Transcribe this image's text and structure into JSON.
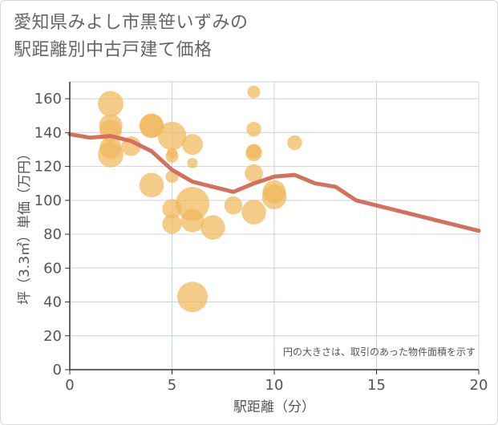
{
  "title": {
    "line1": "愛知県みよし市黒笹いずみの",
    "line2": "駅距離別中古戸建て価格"
  },
  "colors": {
    "bubble": "#f0b85a",
    "line": "#d4705e",
    "grid": "#c8d4e0",
    "plot_bg": "#ffffff"
  },
  "chart_data": {
    "type": "scatter",
    "xlabel": "駅距離（分）",
    "ylabel": "坪（3.3㎡）単価（万円）",
    "xlim": [
      0,
      20
    ],
    "ylim": [
      0,
      170
    ],
    "xticks": [
      0,
      5,
      10,
      15,
      20
    ],
    "yticks": [
      0,
      20,
      40,
      60,
      80,
      100,
      120,
      140,
      160
    ],
    "note": "円の大きさは、取引のあった物件面積を示す",
    "bubbles": [
      {
        "x": 2,
        "y": 157,
        "size": 12
      },
      {
        "x": 2,
        "y": 144,
        "size": 10
      },
      {
        "x": 2,
        "y": 141,
        "size": 9
      },
      {
        "x": 2,
        "y": 131,
        "size": 9
      },
      {
        "x": 2,
        "y": 127,
        "size": 12
      },
      {
        "x": 3,
        "y": 132,
        "size": 7
      },
      {
        "x": 4,
        "y": 144,
        "size": 11
      },
      {
        "x": 4,
        "y": 144,
        "size": 10
      },
      {
        "x": 4,
        "y": 109,
        "size": 11
      },
      {
        "x": 5,
        "y": 138,
        "size": 15
      },
      {
        "x": 5,
        "y": 128,
        "size": 2
      },
      {
        "x": 5,
        "y": 126,
        "size": 3
      },
      {
        "x": 5,
        "y": 114,
        "size": 3
      },
      {
        "x": 5,
        "y": 95,
        "size": 7
      },
      {
        "x": 5,
        "y": 86,
        "size": 7
      },
      {
        "x": 6,
        "y": 133,
        "size": 8
      },
      {
        "x": 6,
        "y": 122,
        "size": 2
      },
      {
        "x": 6,
        "y": 98,
        "size": 21
      },
      {
        "x": 6,
        "y": 88,
        "size": 10
      },
      {
        "x": 6,
        "y": 43,
        "size": 17
      },
      {
        "x": 7,
        "y": 84,
        "size": 11
      },
      {
        "x": 8,
        "y": 97,
        "size": 6
      },
      {
        "x": 9,
        "y": 164,
        "size": 3
      },
      {
        "x": 9,
        "y": 142,
        "size": 4
      },
      {
        "x": 9,
        "y": 129,
        "size": 4
      },
      {
        "x": 9,
        "y": 128,
        "size": 5
      },
      {
        "x": 9,
        "y": 116,
        "size": 6
      },
      {
        "x": 9,
        "y": 93,
        "size": 11
      },
      {
        "x": 10,
        "y": 105,
        "size": 10
      },
      {
        "x": 10,
        "y": 102,
        "size": 11
      },
      {
        "x": 11,
        "y": 134,
        "size": 4
      }
    ],
    "trend": {
      "x": [
        0,
        1,
        2,
        3,
        4,
        5,
        6,
        7,
        8,
        9,
        10,
        11,
        12,
        13,
        14,
        15,
        16,
        17,
        18,
        19,
        20
      ],
      "y": [
        139,
        137,
        138,
        135,
        129,
        118,
        111,
        108,
        105,
        110,
        114,
        115,
        110,
        108,
        100,
        97,
        94,
        91,
        88,
        85,
        82
      ]
    }
  }
}
